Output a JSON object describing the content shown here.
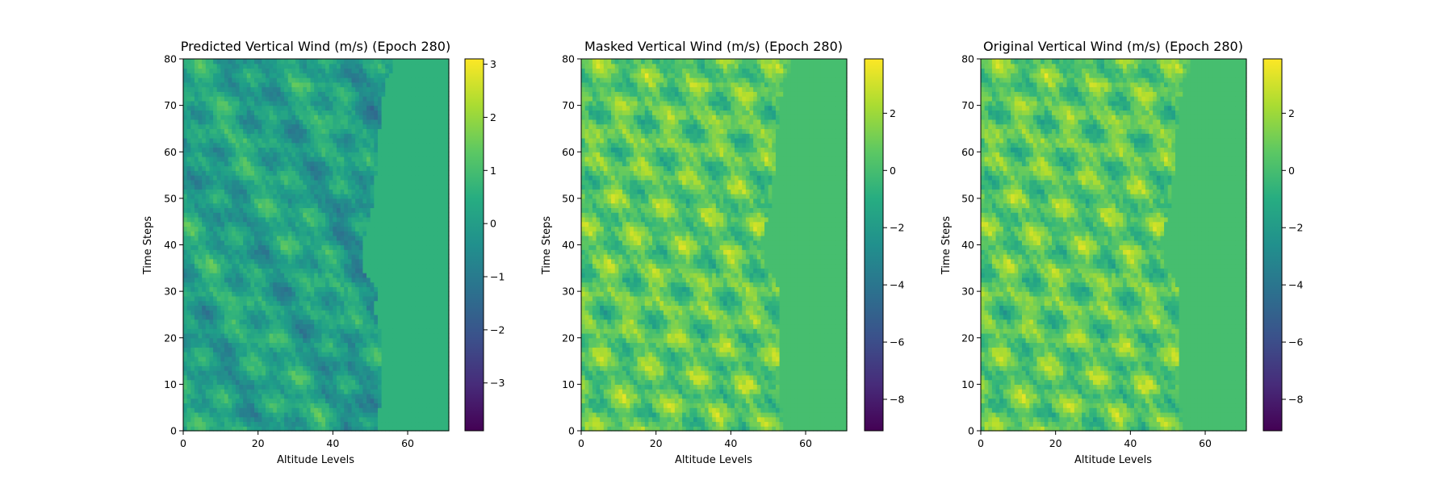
{
  "chart_data": [
    {
      "type": "heatmap",
      "title": "Predicted Vertical Wind (m/s) (Epoch 280)",
      "xlabel": "Altitude Levels",
      "ylabel": "Time Steps",
      "xlim": [
        0,
        71
      ],
      "ylim": [
        0,
        80
      ],
      "x_ticks": [
        0,
        20,
        40,
        60
      ],
      "y_ticks": [
        0,
        10,
        20,
        30,
        40,
        50,
        60,
        70,
        80
      ],
      "colormap": "viridis",
      "colorbar_range": [
        -3.9,
        3.1
      ],
      "colorbar_ticks": [
        3,
        2,
        1,
        0,
        -1,
        -2,
        -3
      ],
      "colorbar_tick_labels": [
        "3",
        "2",
        "1",
        "0",
        "−1",
        "−2",
        "−3"
      ],
      "fill_value": 0.6,
      "edge_profile": [
        [
          0,
          52
        ],
        [
          10,
          53
        ],
        [
          20,
          53
        ],
        [
          27,
          51
        ],
        [
          30,
          52
        ],
        [
          35,
          48
        ],
        [
          40,
          48
        ],
        [
          50,
          51
        ],
        [
          60,
          52
        ],
        [
          70,
          53
        ],
        [
          75,
          54
        ],
        [
          78,
          56
        ],
        [
          80,
          56
        ]
      ],
      "values_range": [
        -3.9,
        3.1
      ]
    },
    {
      "type": "heatmap",
      "title": "Masked Vertical Wind (m/s) (Epoch 280)",
      "xlabel": "Altitude Levels",
      "ylabel": "Time Steps",
      "xlim": [
        0,
        71
      ],
      "ylim": [
        0,
        80
      ],
      "x_ticks": [
        0,
        20,
        40,
        60
      ],
      "y_ticks": [
        0,
        10,
        20,
        30,
        40,
        50,
        60,
        70,
        80
      ],
      "colormap": "viridis",
      "colorbar_range": [
        -9.1,
        3.9
      ],
      "colorbar_ticks": [
        2,
        0,
        -2,
        -4,
        -6,
        -8
      ],
      "colorbar_tick_labels": [
        "2",
        "0",
        "−2",
        "−4",
        "−6",
        "−8"
      ],
      "fill_value": 0.0,
      "edge_profile": [
        [
          0,
          54
        ],
        [
          10,
          53
        ],
        [
          20,
          53
        ],
        [
          27,
          53
        ],
        [
          30,
          53
        ],
        [
          35,
          50
        ],
        [
          40,
          48
        ],
        [
          50,
          51
        ],
        [
          60,
          52
        ],
        [
          70,
          53
        ],
        [
          75,
          54
        ],
        [
          78,
          56
        ],
        [
          80,
          56
        ]
      ],
      "values_range": [
        -9.1,
        3.9
      ]
    },
    {
      "type": "heatmap",
      "title": "Original Vertical Wind (m/s) (Epoch 280)",
      "xlabel": "Altitude Levels",
      "ylabel": "Time Steps",
      "xlim": [
        0,
        71
      ],
      "ylim": [
        0,
        80
      ],
      "x_ticks": [
        0,
        20,
        40,
        60
      ],
      "y_ticks": [
        0,
        10,
        20,
        30,
        40,
        50,
        60,
        70,
        80
      ],
      "colormap": "viridis",
      "colorbar_range": [
        -9.1,
        3.9
      ],
      "colorbar_ticks": [
        2,
        0,
        -2,
        -4,
        -6,
        -8
      ],
      "colorbar_tick_labels": [
        "2",
        "0",
        "−2",
        "−4",
        "−6",
        "−8"
      ],
      "fill_value": 0.0,
      "edge_profile": [
        [
          0,
          54
        ],
        [
          10,
          53
        ],
        [
          20,
          53
        ],
        [
          27,
          53
        ],
        [
          30,
          53
        ],
        [
          35,
          50
        ],
        [
          40,
          48
        ],
        [
          50,
          51
        ],
        [
          60,
          52
        ],
        [
          70,
          53
        ],
        [
          75,
          54
        ],
        [
          78,
          56
        ],
        [
          80,
          56
        ]
      ],
      "values_range": [
        -9.1,
        3.9
      ]
    }
  ]
}
